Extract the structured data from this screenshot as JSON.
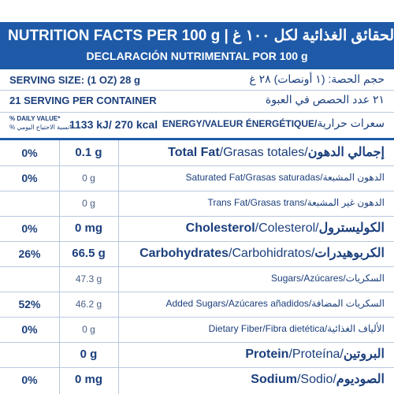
{
  "header": {
    "title_en": "NUTRITION FACTS PER 100 g |",
    "title_ar": "الحقائق الغذائية لكل ١٠٠ غ",
    "subtitle": "DECLARACIÓN NUTRIMENTAL POR 100 g"
  },
  "serving": {
    "size_en": "SERVING SIZE: (1 OZ) 28 g",
    "size_ar": "حجم الحصة: (١ أونصات) ٢٨ غ",
    "count_en": "21 SERVING PER CONTAINER",
    "count_ar": "٢١ عدد الحصص في العبوة"
  },
  "energy": {
    "dv_en": "% DAILY VALUE*",
    "dv_ar": "*نسبة الاحتياج اليومي %",
    "value": "1133 kJ/ 270 kcal",
    "label": "ENERGY/VALEUR ÉNERGÉTIQUE/",
    "label_ar": "سعرات حرارية"
  },
  "table": {
    "rows": [
      {
        "dv": "0%",
        "amount": "0.1 g",
        "en": "Total Fat",
        "es": "/Grasas totales/",
        "ar": "إجمالي الدهون",
        "bold": true
      },
      {
        "dv": "0%",
        "amount": "0 g",
        "en": "Saturated Fat",
        "es": "/Grasas saturadas/",
        "ar": "الدهون المشبعة",
        "bold": false
      },
      {
        "dv": null,
        "amount": "0 g",
        "en": "Trans Fat",
        "es": "/Grasas trans/",
        "ar": "الدهون غير المشبعة",
        "bold": false
      },
      {
        "dv": "0%",
        "amount": "0 mg",
        "en": "Cholesterol",
        "es": "/Colesterol/",
        "ar": "الكوليسترول",
        "bold": true
      },
      {
        "dv": "26%",
        "amount": "66.5 g",
        "en": "Carbohydrates",
        "es": "/Carbohidratos/",
        "ar": "الكربوهيدرات",
        "bold": true
      },
      {
        "dv": null,
        "amount": "47.3 g",
        "en": "Sugars",
        "es": "/Azúcares/",
        "ar": "السكريات",
        "bold": false
      },
      {
        "dv": "52%",
        "amount": "46.2 g",
        "en": "Added Sugars",
        "es": "/Azúcares añadidos/",
        "ar": "السكريات المضافة",
        "bold": false
      },
      {
        "dv": "0%",
        "amount": "0 g",
        "en": "Dietary Fiber",
        "es": "/Fibra dietética/",
        "ar": "الألياف الغذائية",
        "bold": false
      },
      {
        "dv": null,
        "amount": "0 g",
        "en": "Protein",
        "es": "/Proteína/",
        "ar": "البروتين",
        "bold": true
      },
      {
        "dv": "0%",
        "amount": "0 mg",
        "en": "Sodium",
        "es": "/Sodio/",
        "ar": "الصوديوم",
        "bold": true
      }
    ]
  }
}
